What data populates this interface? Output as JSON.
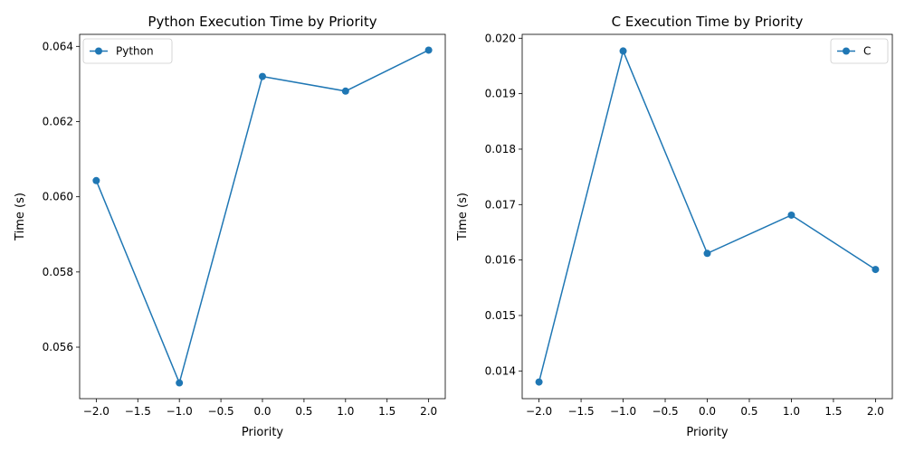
{
  "chart_data": [
    {
      "type": "line",
      "title": "Python Execution Time by Priority",
      "xlabel": "Priority",
      "ylabel": "Time (s)",
      "x": [
        -2,
        -1,
        0,
        1,
        2
      ],
      "series": [
        {
          "name": "Python",
          "values": [
            0.06043,
            0.05505,
            0.0632,
            0.06281,
            0.0639
          ],
          "color": "#1f77b4"
        }
      ],
      "xlim": [
        -2.2,
        2.2
      ],
      "ylim": [
        0.05463,
        0.06432
      ],
      "xticks": [
        -2.0,
        -1.5,
        -1.0,
        -0.5,
        0.0,
        0.5,
        1.0,
        1.5,
        2.0
      ],
      "xtick_labels": [
        "−2.0",
        "−1.5",
        "−1.0",
        "−0.5",
        "0.0",
        "0.5",
        "1.0",
        "1.5",
        "2.0"
      ],
      "yticks": [
        0.056,
        0.058,
        0.06,
        0.062,
        0.064
      ],
      "ytick_labels": [
        "0.056",
        "0.058",
        "0.060",
        "0.062",
        "0.064"
      ],
      "legend_position": "top-left",
      "grid": false
    },
    {
      "type": "line",
      "title": "C Execution Time by Priority",
      "xlabel": "Priority",
      "ylabel": "Time (s)",
      "x": [
        -2,
        -1,
        0,
        1,
        2
      ],
      "series": [
        {
          "name": "C",
          "values": [
            0.0138,
            0.01977,
            0.01612,
            0.01681,
            0.01583
          ],
          "color": "#1f77b4"
        }
      ],
      "xlim": [
        -2.2,
        2.2
      ],
      "ylim": [
        0.0135,
        0.02007
      ],
      "xticks": [
        -2.0,
        -1.5,
        -1.0,
        -0.5,
        0.0,
        0.5,
        1.0,
        1.5,
        2.0
      ],
      "xtick_labels": [
        "−2.0",
        "−1.5",
        "−1.0",
        "−0.5",
        "0.0",
        "0.5",
        "1.0",
        "1.5",
        "2.0"
      ],
      "yticks": [
        0.014,
        0.015,
        0.016,
        0.017,
        0.018,
        0.019,
        0.02
      ],
      "ytick_labels": [
        "0.014",
        "0.015",
        "0.016",
        "0.017",
        "0.018",
        "0.019",
        "0.020"
      ],
      "legend_position": "top-right",
      "grid": false
    }
  ]
}
